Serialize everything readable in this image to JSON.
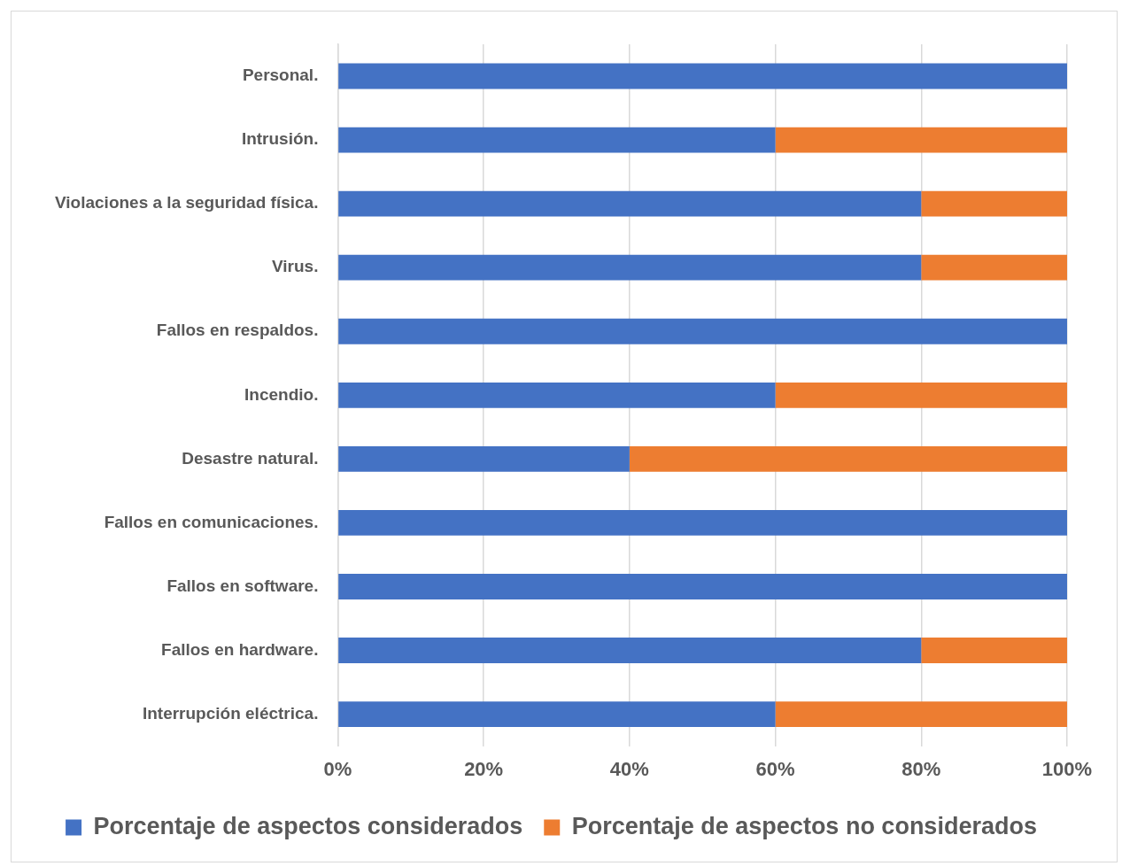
{
  "chart_data": {
    "type": "bar",
    "orientation": "horizontal",
    "stacked": true,
    "categories": [
      "Personal.",
      "Intrusión.",
      "Violaciones a la seguridad física.",
      "Virus.",
      "Fallos en respaldos.",
      "Incendio.",
      "Desastre natural.",
      "Fallos en comunicaciones.",
      "Fallos en software.",
      "Fallos en hardware.",
      "Interrupción eléctrica."
    ],
    "series": [
      {
        "name": "Porcentaje de aspectos considerados",
        "color": "#4472c4",
        "values": [
          100,
          60,
          80,
          80,
          100,
          60,
          40,
          100,
          100,
          80,
          60
        ]
      },
      {
        "name": "Porcentaje de aspectos no considerados",
        "color": "#ed7d31",
        "values": [
          0,
          40,
          20,
          20,
          0,
          40,
          60,
          0,
          0,
          20,
          40
        ]
      }
    ],
    "xlim": [
      0,
      100
    ],
    "xticks": [
      {
        "value": 0,
        "label": "0%"
      },
      {
        "value": 20,
        "label": "20%"
      },
      {
        "value": 40,
        "label": "40%"
      },
      {
        "value": 60,
        "label": "60%"
      },
      {
        "value": 80,
        "label": "80%"
      },
      {
        "value": 100,
        "label": "100%"
      }
    ],
    "grid": "x",
    "legend": "bottom"
  }
}
